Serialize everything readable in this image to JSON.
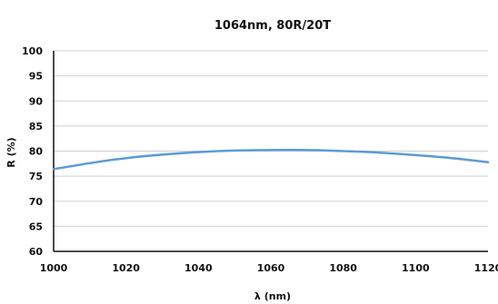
{
  "chart_data": {
    "type": "line",
    "title": "1064nm, 80R/20T",
    "xlabel": "λ (nm)",
    "ylabel": "R (%)",
    "xlim": [
      1000,
      1120
    ],
    "ylim": [
      60,
      100
    ],
    "xticks": [
      1000,
      1020,
      1040,
      1060,
      1080,
      1100,
      1120
    ],
    "yticks": [
      60,
      65,
      70,
      75,
      80,
      85,
      90,
      95,
      100
    ],
    "grid": "horizontal",
    "line_color": "#5b9bd5",
    "series": [
      {
        "x": [
          1000,
          1010,
          1020,
          1030,
          1040,
          1050,
          1060,
          1070,
          1080,
          1090,
          1100,
          1110,
          1120
        ],
        "y": [
          76.4,
          77.6,
          78.6,
          79.3,
          79.8,
          80.1,
          80.2,
          80.2,
          80.0,
          79.7,
          79.2,
          78.6,
          77.8
        ]
      }
    ]
  }
}
